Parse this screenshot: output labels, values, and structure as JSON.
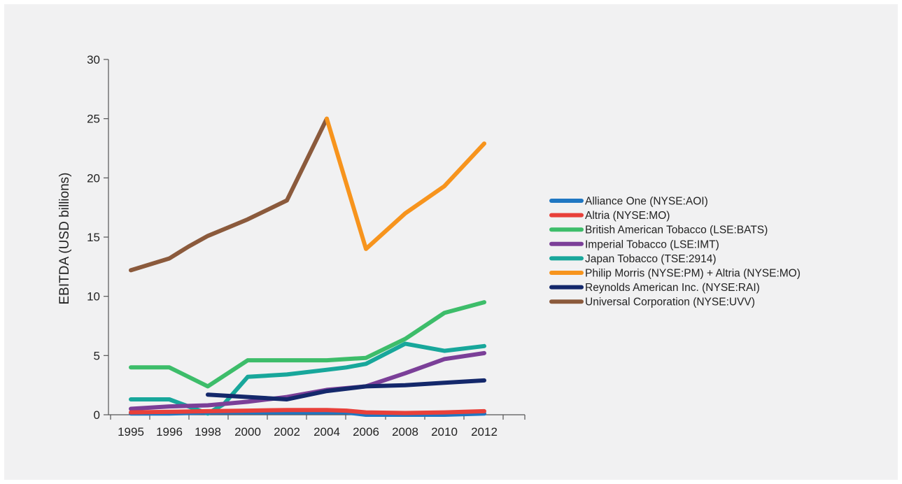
{
  "chart_data": {
    "type": "line",
    "title": "",
    "xlabel": "",
    "ylabel": "EBITDA (USD billions)",
    "ylim": [
      0,
      30
    ],
    "yticks": [
      0,
      5,
      10,
      15,
      20,
      25,
      30
    ],
    "xticks": [
      1995,
      1996,
      1998,
      2000,
      2002,
      2004,
      2006,
      2008,
      2010,
      2012
    ],
    "grid": false,
    "legend_position": "right",
    "series": [
      {
        "name": "Alliance One (NYSE:AOI)",
        "color": "#1f77c2",
        "points": [
          [
            1995,
            0.1
          ],
          [
            1996,
            0.1
          ],
          [
            1998,
            0.2
          ],
          [
            2000,
            0.2
          ],
          [
            2002,
            0.2
          ],
          [
            2004,
            0.2
          ],
          [
            2005,
            0.2
          ],
          [
            2006,
            0.0
          ],
          [
            2008,
            0.0
          ],
          [
            2010,
            0.0
          ],
          [
            2012,
            0.1
          ]
        ]
      },
      {
        "name": "Altria (NYSE:MO)",
        "color": "#e8403a",
        "points": [
          [
            1995,
            0.2
          ],
          [
            1996,
            0.25
          ],
          [
            1998,
            0.3
          ],
          [
            2000,
            0.35
          ],
          [
            2002,
            0.4
          ],
          [
            2004,
            0.4
          ],
          [
            2005,
            0.35
          ],
          [
            2006,
            0.2
          ],
          [
            2008,
            0.15
          ],
          [
            2010,
            0.2
          ],
          [
            2012,
            0.3
          ]
        ]
      },
      {
        "name": "British American Tobacco (LSE:BATS)",
        "color": "#3dbd6a",
        "points": [
          [
            1995,
            4.0
          ],
          [
            1996,
            4.0
          ],
          [
            1998,
            2.4
          ],
          [
            2000,
            4.6
          ],
          [
            2002,
            4.6
          ],
          [
            2004,
            4.6
          ],
          [
            2006,
            4.8
          ],
          [
            2008,
            6.4
          ],
          [
            2010,
            8.6
          ],
          [
            2012,
            9.5
          ]
        ]
      },
      {
        "name": "Imperial Tobacco (LSE:IMT)",
        "color": "#7b3f98",
        "points": [
          [
            1995,
            0.5
          ],
          [
            1996,
            0.7
          ],
          [
            1998,
            0.8
          ],
          [
            2000,
            1.1
          ],
          [
            2002,
            1.5
          ],
          [
            2004,
            2.1
          ],
          [
            2006,
            2.4
          ],
          [
            2008,
            3.5
          ],
          [
            2010,
            4.7
          ],
          [
            2012,
            5.2
          ]
        ]
      },
      {
        "name": "Japan Tobacco (TSE:2914)",
        "color": "#18a79b",
        "points": [
          [
            1995,
            1.3
          ],
          [
            1996,
            1.3
          ],
          [
            1998,
            0.1
          ],
          [
            1998.8,
            0.9
          ],
          [
            2000,
            3.2
          ],
          [
            2002,
            3.4
          ],
          [
            2004,
            3.8
          ],
          [
            2005,
            4.0
          ],
          [
            2006,
            4.3
          ],
          [
            2008,
            6.0
          ],
          [
            2010,
            5.4
          ],
          [
            2012,
            5.8
          ]
        ]
      },
      {
        "name": "Philip Morris (NYSE:PM) + Altria (NYSE:MO)",
        "color": "#f7941d",
        "points": [
          [
            2004,
            25.0
          ],
          [
            2006,
            14.0
          ],
          [
            2008,
            17.0
          ],
          [
            2010,
            19.3
          ],
          [
            2012,
            22.9
          ]
        ]
      },
      {
        "name": "Reynolds American Inc. (NYSE:RAI)",
        "color": "#14286b",
        "points": [
          [
            1998,
            1.7
          ],
          [
            2000,
            1.5
          ],
          [
            2002,
            1.3
          ],
          [
            2004,
            2.0
          ],
          [
            2006,
            2.4
          ],
          [
            2008,
            2.5
          ],
          [
            2010,
            2.7
          ],
          [
            2012,
            2.9
          ]
        ]
      },
      {
        "name": "Universal Corporation (NYSE:UVV)",
        "color": "#8b5a3c",
        "points": [
          [
            1995,
            12.2
          ],
          [
            1996,
            13.2
          ],
          [
            1997,
            14.2
          ],
          [
            1998,
            15.1
          ],
          [
            1999,
            15.8
          ],
          [
            2000,
            16.5
          ],
          [
            2002,
            18.1
          ],
          [
            2004,
            25.0
          ]
        ]
      }
    ]
  }
}
